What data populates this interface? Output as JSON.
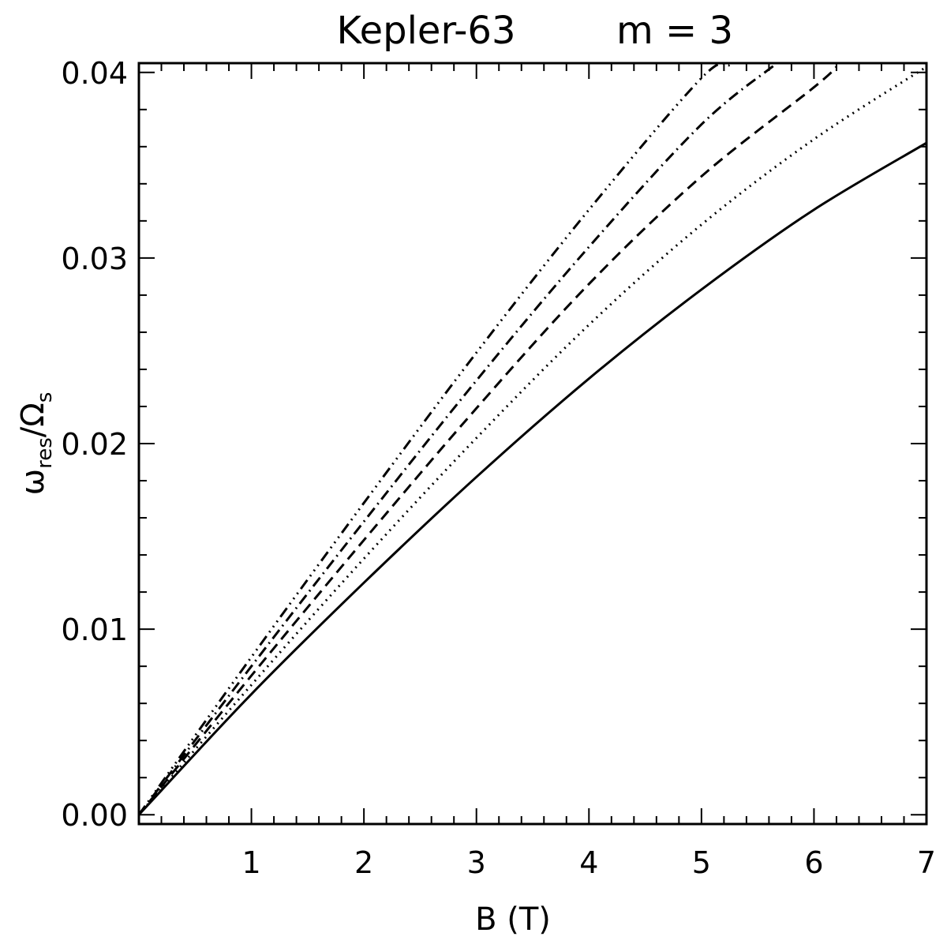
{
  "chart_data": {
    "type": "line",
    "title_left": "Kepler-63",
    "title_right": "m = 3",
    "xlabel": "B (T)",
    "ylabel_main": "ω",
    "ylabel_sub": "res",
    "ylabel_div": "/Ω",
    "ylabel_sub2": "s",
    "xlim": [
      0,
      7
    ],
    "ylim": [
      -0.0005,
      0.0405
    ],
    "x_ticks": [
      1,
      2,
      3,
      4,
      5,
      6,
      7
    ],
    "y_ticks": [
      "0.00",
      "0.01",
      "0.02",
      "0.03",
      "0.04"
    ],
    "grid": false,
    "legend": "none",
    "series": [
      {
        "style": "solid",
        "x": [
          0,
          1,
          2,
          3,
          4,
          5,
          6,
          7
        ],
        "y": [
          0,
          0.0065,
          0.0125,
          0.0182,
          0.0235,
          0.0283,
          0.0326,
          0.0362
        ]
      },
      {
        "style": "dotted",
        "x": [
          0,
          1,
          2,
          3,
          4,
          5,
          6,
          7
        ],
        "y": [
          0,
          0.007,
          0.0138,
          0.0203,
          0.0264,
          0.0318,
          0.0364,
          0.0403
        ]
      },
      {
        "style": "dashed",
        "x": [
          0,
          1,
          2,
          3,
          4,
          5,
          6,
          6.2
        ],
        "y": [
          0,
          0.0075,
          0.0148,
          0.0219,
          0.0286,
          0.0344,
          0.0392,
          0.0403
        ]
      },
      {
        "style": "dash-dot",
        "x": [
          0,
          1,
          2,
          3,
          4,
          5,
          5.65
        ],
        "y": [
          0,
          0.008,
          0.0158,
          0.0234,
          0.0306,
          0.0372,
          0.0404
        ]
      },
      {
        "style": "dash-dot-dot-dot",
        "x": [
          0,
          1,
          2,
          3,
          4,
          5,
          5.25
        ],
        "y": [
          0,
          0.0085,
          0.0168,
          0.0249,
          0.0326,
          0.0397,
          0.0404
        ]
      }
    ]
  }
}
